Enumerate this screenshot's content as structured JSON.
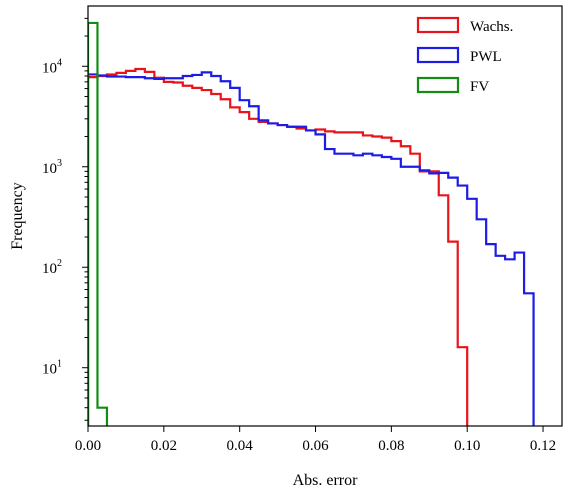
{
  "chart_data": {
    "type": "histogram",
    "xlabel": "Abs. error",
    "ylabel": "Frequency",
    "xlim": [
      0.0,
      0.125
    ],
    "ylim_log10": [
      0.42,
      4.6
    ],
    "yscale": "log",
    "x_ticks": [
      0.0,
      0.02,
      0.04,
      0.06,
      0.08,
      0.1,
      0.12
    ],
    "x_tick_labels": [
      "0.00",
      "0.02",
      "0.04",
      "0.06",
      "0.08",
      "0.10",
      "0.12"
    ],
    "y_ticks": [
      {
        "exp": 1,
        "base": "10",
        "sup": "1"
      },
      {
        "exp": 2,
        "base": "10",
        "sup": "2"
      },
      {
        "exp": 3,
        "base": "10",
        "sup": "3"
      },
      {
        "exp": 4,
        "base": "10",
        "sup": "4"
      }
    ],
    "legend_position": "top-right",
    "series": [
      {
        "name": "Wachs.",
        "color": "#e8141c",
        "bin_edges": [
          0.0,
          0.0025,
          0.005,
          0.0075,
          0.01,
          0.0125,
          0.015,
          0.0175,
          0.02,
          0.0225,
          0.025,
          0.0275,
          0.03,
          0.0325,
          0.035,
          0.0375,
          0.04,
          0.0425,
          0.045,
          0.0475,
          0.05,
          0.0525,
          0.055,
          0.0575,
          0.06,
          0.0625,
          0.065,
          0.0675,
          0.07,
          0.0725,
          0.075,
          0.0775,
          0.08,
          0.0825,
          0.085,
          0.0875,
          0.09,
          0.0925,
          0.095,
          0.0975,
          0.1
        ],
        "counts": [
          7800,
          8000,
          8300,
          8600,
          9000,
          9400,
          8800,
          7700,
          7000,
          6900,
          6400,
          6100,
          5800,
          5300,
          4700,
          3900,
          3500,
          3000,
          2800,
          2700,
          2600,
          2500,
          2400,
          2300,
          2350,
          2250,
          2200,
          2200,
          2200,
          2050,
          2000,
          1950,
          1800,
          1600,
          1350,
          900,
          900,
          520,
          180,
          16
        ]
      },
      {
        "name": "PWL",
        "color": "#1c1ce6",
        "bin_edges": [
          0.0,
          0.0025,
          0.005,
          0.0075,
          0.01,
          0.0125,
          0.015,
          0.0175,
          0.02,
          0.0225,
          0.025,
          0.0275,
          0.03,
          0.0325,
          0.035,
          0.0375,
          0.04,
          0.0425,
          0.045,
          0.0475,
          0.05,
          0.0525,
          0.055,
          0.0575,
          0.06,
          0.0625,
          0.065,
          0.0675,
          0.07,
          0.0725,
          0.075,
          0.0775,
          0.08,
          0.0825,
          0.085,
          0.0875,
          0.09,
          0.0925,
          0.095,
          0.0975,
          0.1,
          0.1025,
          0.105,
          0.1075,
          0.11,
          0.1125,
          0.115,
          0.1175
        ],
        "counts": [
          8300,
          8100,
          7900,
          7900,
          7800,
          7800,
          7600,
          7500,
          7600,
          7600,
          8000,
          8200,
          8700,
          8000,
          7100,
          6100,
          4600,
          4000,
          2900,
          2700,
          2600,
          2500,
          2500,
          2300,
          2100,
          1500,
          1350,
          1350,
          1300,
          1350,
          1300,
          1250,
          1200,
          1000,
          1000,
          920,
          860,
          870,
          780,
          650,
          480,
          300,
          170,
          130,
          120,
          140,
          55
        ]
      },
      {
        "name": "FV",
        "color": "#128c12",
        "bin_edges": [
          0.0,
          0.0025,
          0.005
        ],
        "counts": [
          27000,
          4
        ]
      }
    ]
  }
}
